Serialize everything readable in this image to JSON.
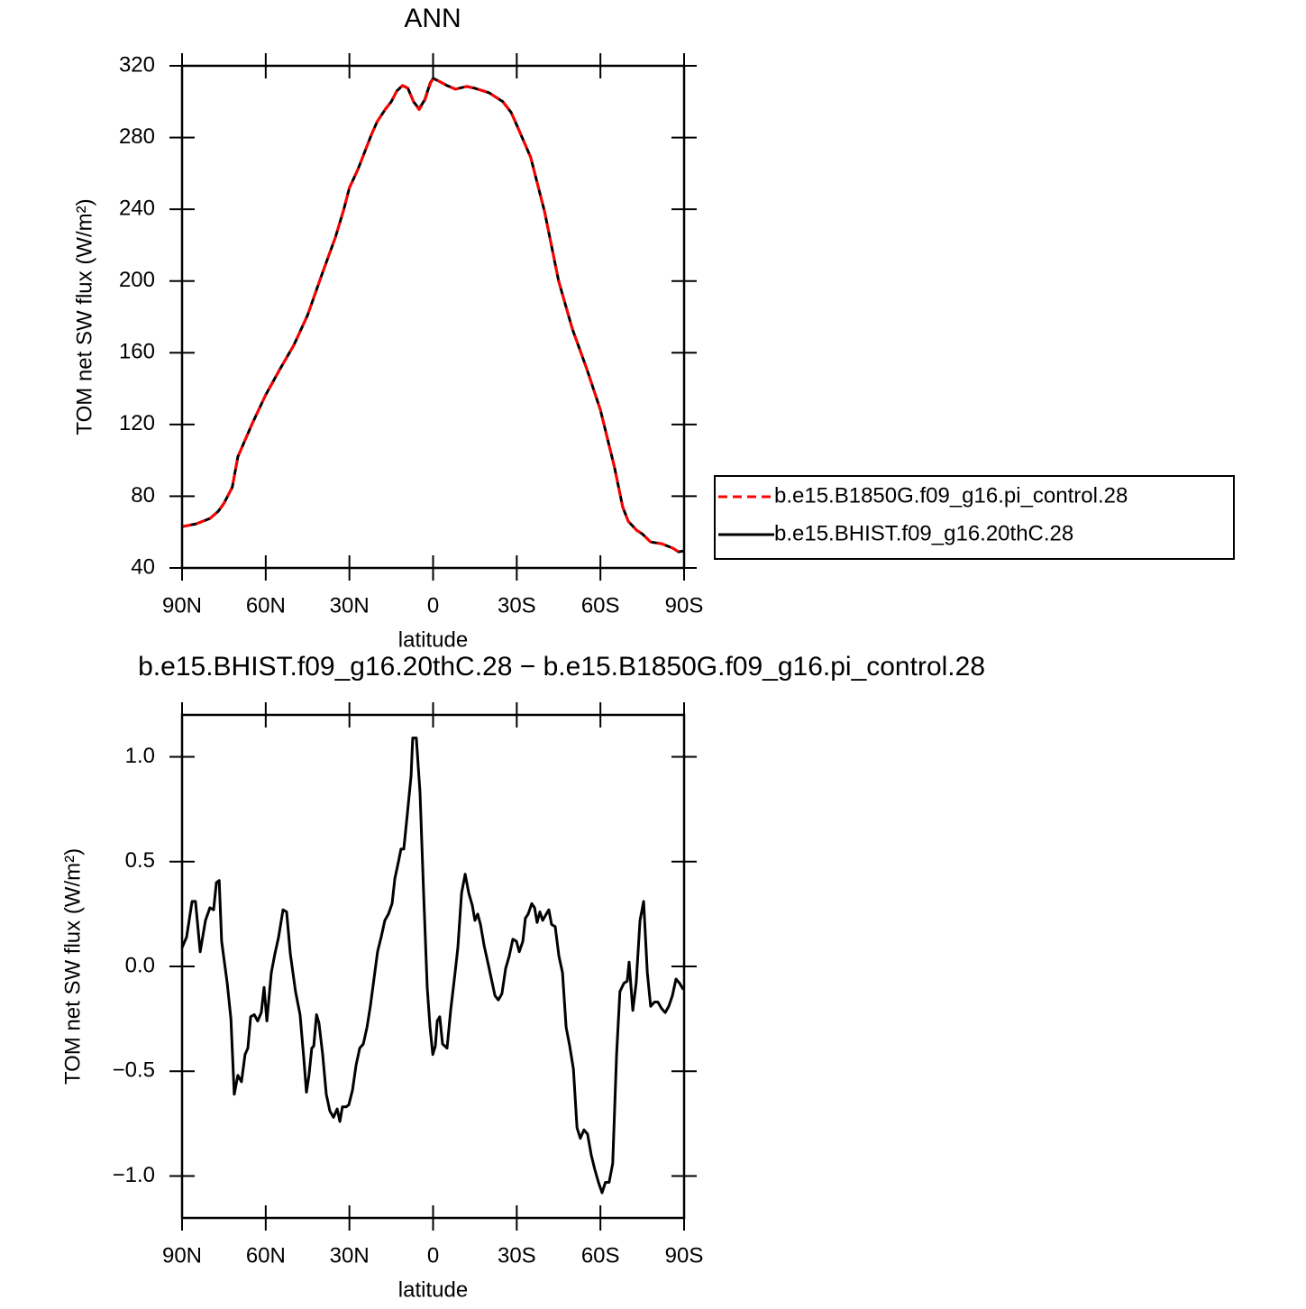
{
  "chart_data": [
    {
      "type": "line",
      "title": "ANN",
      "x_label": "latitude",
      "y_label": "TOM net SW flux (W/m²)",
      "x": [
        90,
        85,
        80,
        77,
        75,
        72,
        70,
        65,
        60,
        55,
        50,
        45,
        40,
        35,
        32,
        30,
        27,
        25,
        22,
        20,
        17,
        15,
        13,
        11,
        9,
        7,
        5,
        3,
        1,
        0,
        -2,
        -5,
        -8,
        -12,
        -15,
        -20,
        -25,
        -28,
        -30,
        -35,
        -40,
        -45,
        -50,
        -55,
        -60,
        -65,
        -68,
        -70,
        -73,
        -75,
        -78,
        -82,
        -86,
        -88,
        -90
      ],
      "series": [
        {
          "name": "b.e15.B1850G.f09_g16.pi_control.28",
          "color": "#ff0000",
          "dashed": true,
          "values": [
            63,
            64.6,
            67.6,
            71.6,
            76,
            85,
            102,
            120,
            136.5,
            150.6,
            164,
            181,
            203,
            224.5,
            240,
            252,
            262,
            270,
            282,
            289,
            296,
            300,
            306,
            309,
            307.5,
            300,
            295.5,
            300.5,
            310,
            313,
            311.5,
            309,
            307,
            308.5,
            307.5,
            305,
            300,
            294,
            287,
            269,
            238.5,
            200,
            173,
            151.5,
            128,
            96.5,
            74,
            66,
            61,
            59,
            54.5,
            53.5,
            51,
            49,
            49.5
          ]
        },
        {
          "name": "b.e15.BHIST.f09_g16.20thC.28",
          "color": "#000000",
          "dashed": false,
          "values": [
            63,
            64.6,
            67.6,
            71.6,
            76,
            85,
            102,
            120,
            136.5,
            150.6,
            164,
            181,
            203,
            224.5,
            240,
            252,
            262,
            270,
            282,
            289,
            296,
            300,
            306,
            309,
            307.5,
            300,
            296,
            301,
            310.5,
            313,
            311.5,
            309,
            307,
            308.5,
            307.5,
            305,
            300,
            294,
            287,
            269,
            238.5,
            200,
            173,
            151.5,
            128,
            96.5,
            74,
            66,
            61,
            59,
            54.5,
            53.5,
            51,
            49,
            49.5
          ]
        }
      ],
      "xlim": [
        90,
        -90
      ],
      "xticks": [
        {
          "value": 90,
          "label": "90N"
        },
        {
          "value": 60,
          "label": "60N"
        },
        {
          "value": 30,
          "label": "30N"
        },
        0,
        {
          "value": -30,
          "label": "30S"
        },
        {
          "value": -60,
          "label": "60S"
        },
        {
          "value": -90,
          "label": "90S"
        }
      ],
      "ylim": [
        40,
        320
      ],
      "yticks": [
        40,
        80,
        120,
        160,
        200,
        240,
        280,
        320
      ],
      "legend": "right"
    },
    {
      "type": "line",
      "title": "b.e15.BHIST.f09_g16.20thC.28 − b.e15.B1850G.f09_g16.pi_control.28",
      "x_label": "latitude",
      "y_label": "TOM net SW flux (W/m²)",
      "x": [
        90,
        88.4,
        86.4,
        85.2,
        83.5,
        81.6,
        80,
        78.7,
        77.7,
        76.7,
        75.8,
        73.8,
        72.5,
        71.3,
        70,
        68.7,
        67.4,
        66.4,
        65.4,
        64.1,
        62.9,
        61.6,
        60.6,
        59.6,
        58,
        56.7,
        55.4,
        53.8,
        52.5,
        51.2,
        49.3,
        47.7,
        46.4,
        45.4,
        44.5,
        43.5,
        42.8,
        41.8,
        40.9,
        39.6,
        38.3,
        37,
        35.7,
        34.4,
        33.4,
        32.5,
        31.2,
        30.2,
        28.9,
        27.6,
        26.3,
        25,
        23.7,
        22.5,
        21.2,
        19.9,
        18.6,
        17.3,
        16,
        14.7,
        13.7,
        12.4,
        11.5,
        10.5,
        9.2,
        7.9,
        7.3,
        6,
        4.7,
        3.4,
        2.1,
        1.1,
        0.1,
        -0.8,
        -1.5,
        -2.4,
        -3.4,
        -5,
        -6.3,
        -7.9,
        -8.9,
        -10.2,
        -11.5,
        -12.8,
        -14.1,
        -15,
        -16,
        -17,
        -18.3,
        -19.6,
        -20.9,
        -22.2,
        -23.4,
        -24.7,
        -26,
        -27.3,
        -28.6,
        -29.9,
        -30.9,
        -32.2,
        -33.1,
        -34.1,
        -35.4,
        -36.4,
        -37.3,
        -38.3,
        -39.3,
        -40.6,
        -41.5,
        -42.5,
        -43.8,
        -45.1,
        -46.4,
        -47.7,
        -49,
        -50.3,
        -51.6,
        -52.8,
        -54.1,
        -55.4,
        -56.7,
        -58,
        -59.3,
        -60.6,
        -61.8,
        -63.1,
        -64.4,
        -65.8,
        -67,
        -68.4,
        -69.6,
        -70.3,
        -71.6,
        -72.8,
        -74.2,
        -75.5,
        -76.8,
        -78,
        -79.4,
        -80.6,
        -81.9,
        -83.2,
        -84.5,
        -85.8,
        -87.1,
        -88.4,
        -89.7
      ],
      "series": [
        {
          "color": "#000000",
          "dashed": false,
          "values": [
            0.09,
            0.14,
            0.31,
            0.31,
            0.07,
            0.22,
            0.28,
            0.27,
            0.4,
            0.41,
            0.12,
            -0.08,
            -0.25,
            -0.61,
            -0.52,
            -0.55,
            -0.42,
            -0.39,
            -0.24,
            -0.23,
            -0.26,
            -0.22,
            -0.1,
            -0.26,
            -0.03,
            0.06,
            0.14,
            0.27,
            0.26,
            0.06,
            -0.12,
            -0.23,
            -0.43,
            -0.6,
            -0.52,
            -0.39,
            -0.38,
            -0.23,
            -0.27,
            -0.42,
            -0.61,
            -0.69,
            -0.72,
            -0.68,
            -0.74,
            -0.67,
            -0.67,
            -0.66,
            -0.59,
            -0.47,
            -0.39,
            -0.37,
            -0.29,
            -0.19,
            -0.06,
            0.07,
            0.14,
            0.22,
            0.25,
            0.3,
            0.42,
            0.5,
            0.56,
            0.56,
            0.73,
            0.91,
            1.09,
            1.09,
            0.83,
            0.35,
            -0.1,
            -0.29,
            -0.42,
            -0.38,
            -0.26,
            -0.24,
            -0.37,
            -0.39,
            -0.21,
            -0.03,
            0.09,
            0.35,
            0.44,
            0.35,
            0.29,
            0.22,
            0.25,
            0.2,
            0.1,
            0.02,
            -0.06,
            -0.14,
            -0.16,
            -0.13,
            -0.01,
            0.05,
            0.13,
            0.12,
            0.07,
            0.12,
            0.23,
            0.25,
            0.3,
            0.28,
            0.21,
            0.26,
            0.22,
            0.25,
            0.27,
            0.2,
            0.19,
            0.05,
            -0.03,
            -0.29,
            -0.38,
            -0.49,
            -0.77,
            -0.82,
            -0.78,
            -0.8,
            -0.9,
            -0.97,
            -1.03,
            -1.08,
            -1.03,
            -1.03,
            -0.94,
            -0.42,
            -0.12,
            -0.08,
            -0.07,
            0.02,
            -0.21,
            -0.08,
            0.22,
            0.31,
            -0.03,
            -0.19,
            -0.17,
            -0.17,
            -0.2,
            -0.22,
            -0.19,
            -0.14,
            -0.06,
            -0.08,
            -0.11
          ]
        }
      ],
      "xlim": [
        90,
        -90
      ],
      "xticks": [
        {
          "value": 90,
          "label": "90N"
        },
        {
          "value": 60,
          "label": "60N"
        },
        {
          "value": 30,
          "label": "30N"
        },
        0,
        {
          "value": -30,
          "label": "30S"
        },
        {
          "value": -60,
          "label": "60S"
        },
        {
          "value": -90,
          "label": "90S"
        }
      ],
      "ylim": [
        -1.2,
        1.2
      ],
      "yticks": [
        {
          "value": -1,
          "label": "−1.0"
        },
        {
          "value": -0.5,
          "label": "−0.5"
        },
        {
          "value": 0,
          "label": "0.0"
        },
        0.5,
        {
          "value": 1,
          "label": "1.0"
        }
      ]
    }
  ]
}
